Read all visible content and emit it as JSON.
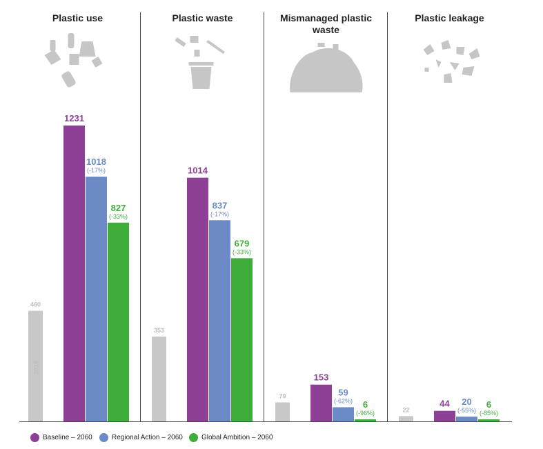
{
  "colors": {
    "base": "#c8c8c8",
    "baseline": "#8e3f96",
    "regional": "#6b8ac6",
    "global": "#3fad3a",
    "icon": "#c6c6c6"
  },
  "chart_data": {
    "type": "bar",
    "ylim": [
      0,
      1350
    ],
    "base_year_label": "2019",
    "series": [
      {
        "name": "Baseline – 2060",
        "key": "baseline"
      },
      {
        "name": "Regional Action – 2060",
        "key": "regional"
      },
      {
        "name": "Global Ambition – 2060",
        "key": "global"
      }
    ],
    "panels": [
      {
        "title_lines": [
          "Plastic use"
        ],
        "icon": "plastic-use-icon",
        "base_2019": 460,
        "values": [
          1231,
          1018,
          827
        ],
        "labels": [
          "1231",
          "1018",
          "827"
        ],
        "pct": [
          "",
          "(-17%)",
          "(-33%)"
        ]
      },
      {
        "title_lines": [
          "Plastic waste"
        ],
        "icon": "plastic-waste-bin-icon",
        "base_2019": 353,
        "values": [
          1014,
          837,
          679
        ],
        "labels": [
          "1014",
          "837",
          "679"
        ],
        "pct": [
          "",
          "(-17%)",
          "(-33%)"
        ]
      },
      {
        "title_lines": [
          "Mismanaged plastic",
          "waste"
        ],
        "icon": "mismanaged-waste-pile-icon",
        "base_2019": 79,
        "values": [
          153,
          59,
          6
        ],
        "labels": [
          "153",
          "59",
          "6"
        ],
        "pct": [
          "",
          "(-62%)",
          "(-96%)"
        ]
      },
      {
        "title_lines": [
          "Plastic leakage"
        ],
        "icon": "plastic-leakage-icon",
        "base_2019": 22,
        "values": [
          44,
          20,
          6
        ],
        "labels": [
          "44",
          "20",
          "6"
        ],
        "pct": [
          "",
          "(-55%)",
          "(-85%)"
        ]
      }
    ]
  },
  "legend": [
    {
      "label": "Baseline – 2060",
      "key": "baseline"
    },
    {
      "label": "Regional Action – 2060",
      "key": "regional"
    },
    {
      "label": "Global Ambition – 2060",
      "key": "global"
    }
  ]
}
